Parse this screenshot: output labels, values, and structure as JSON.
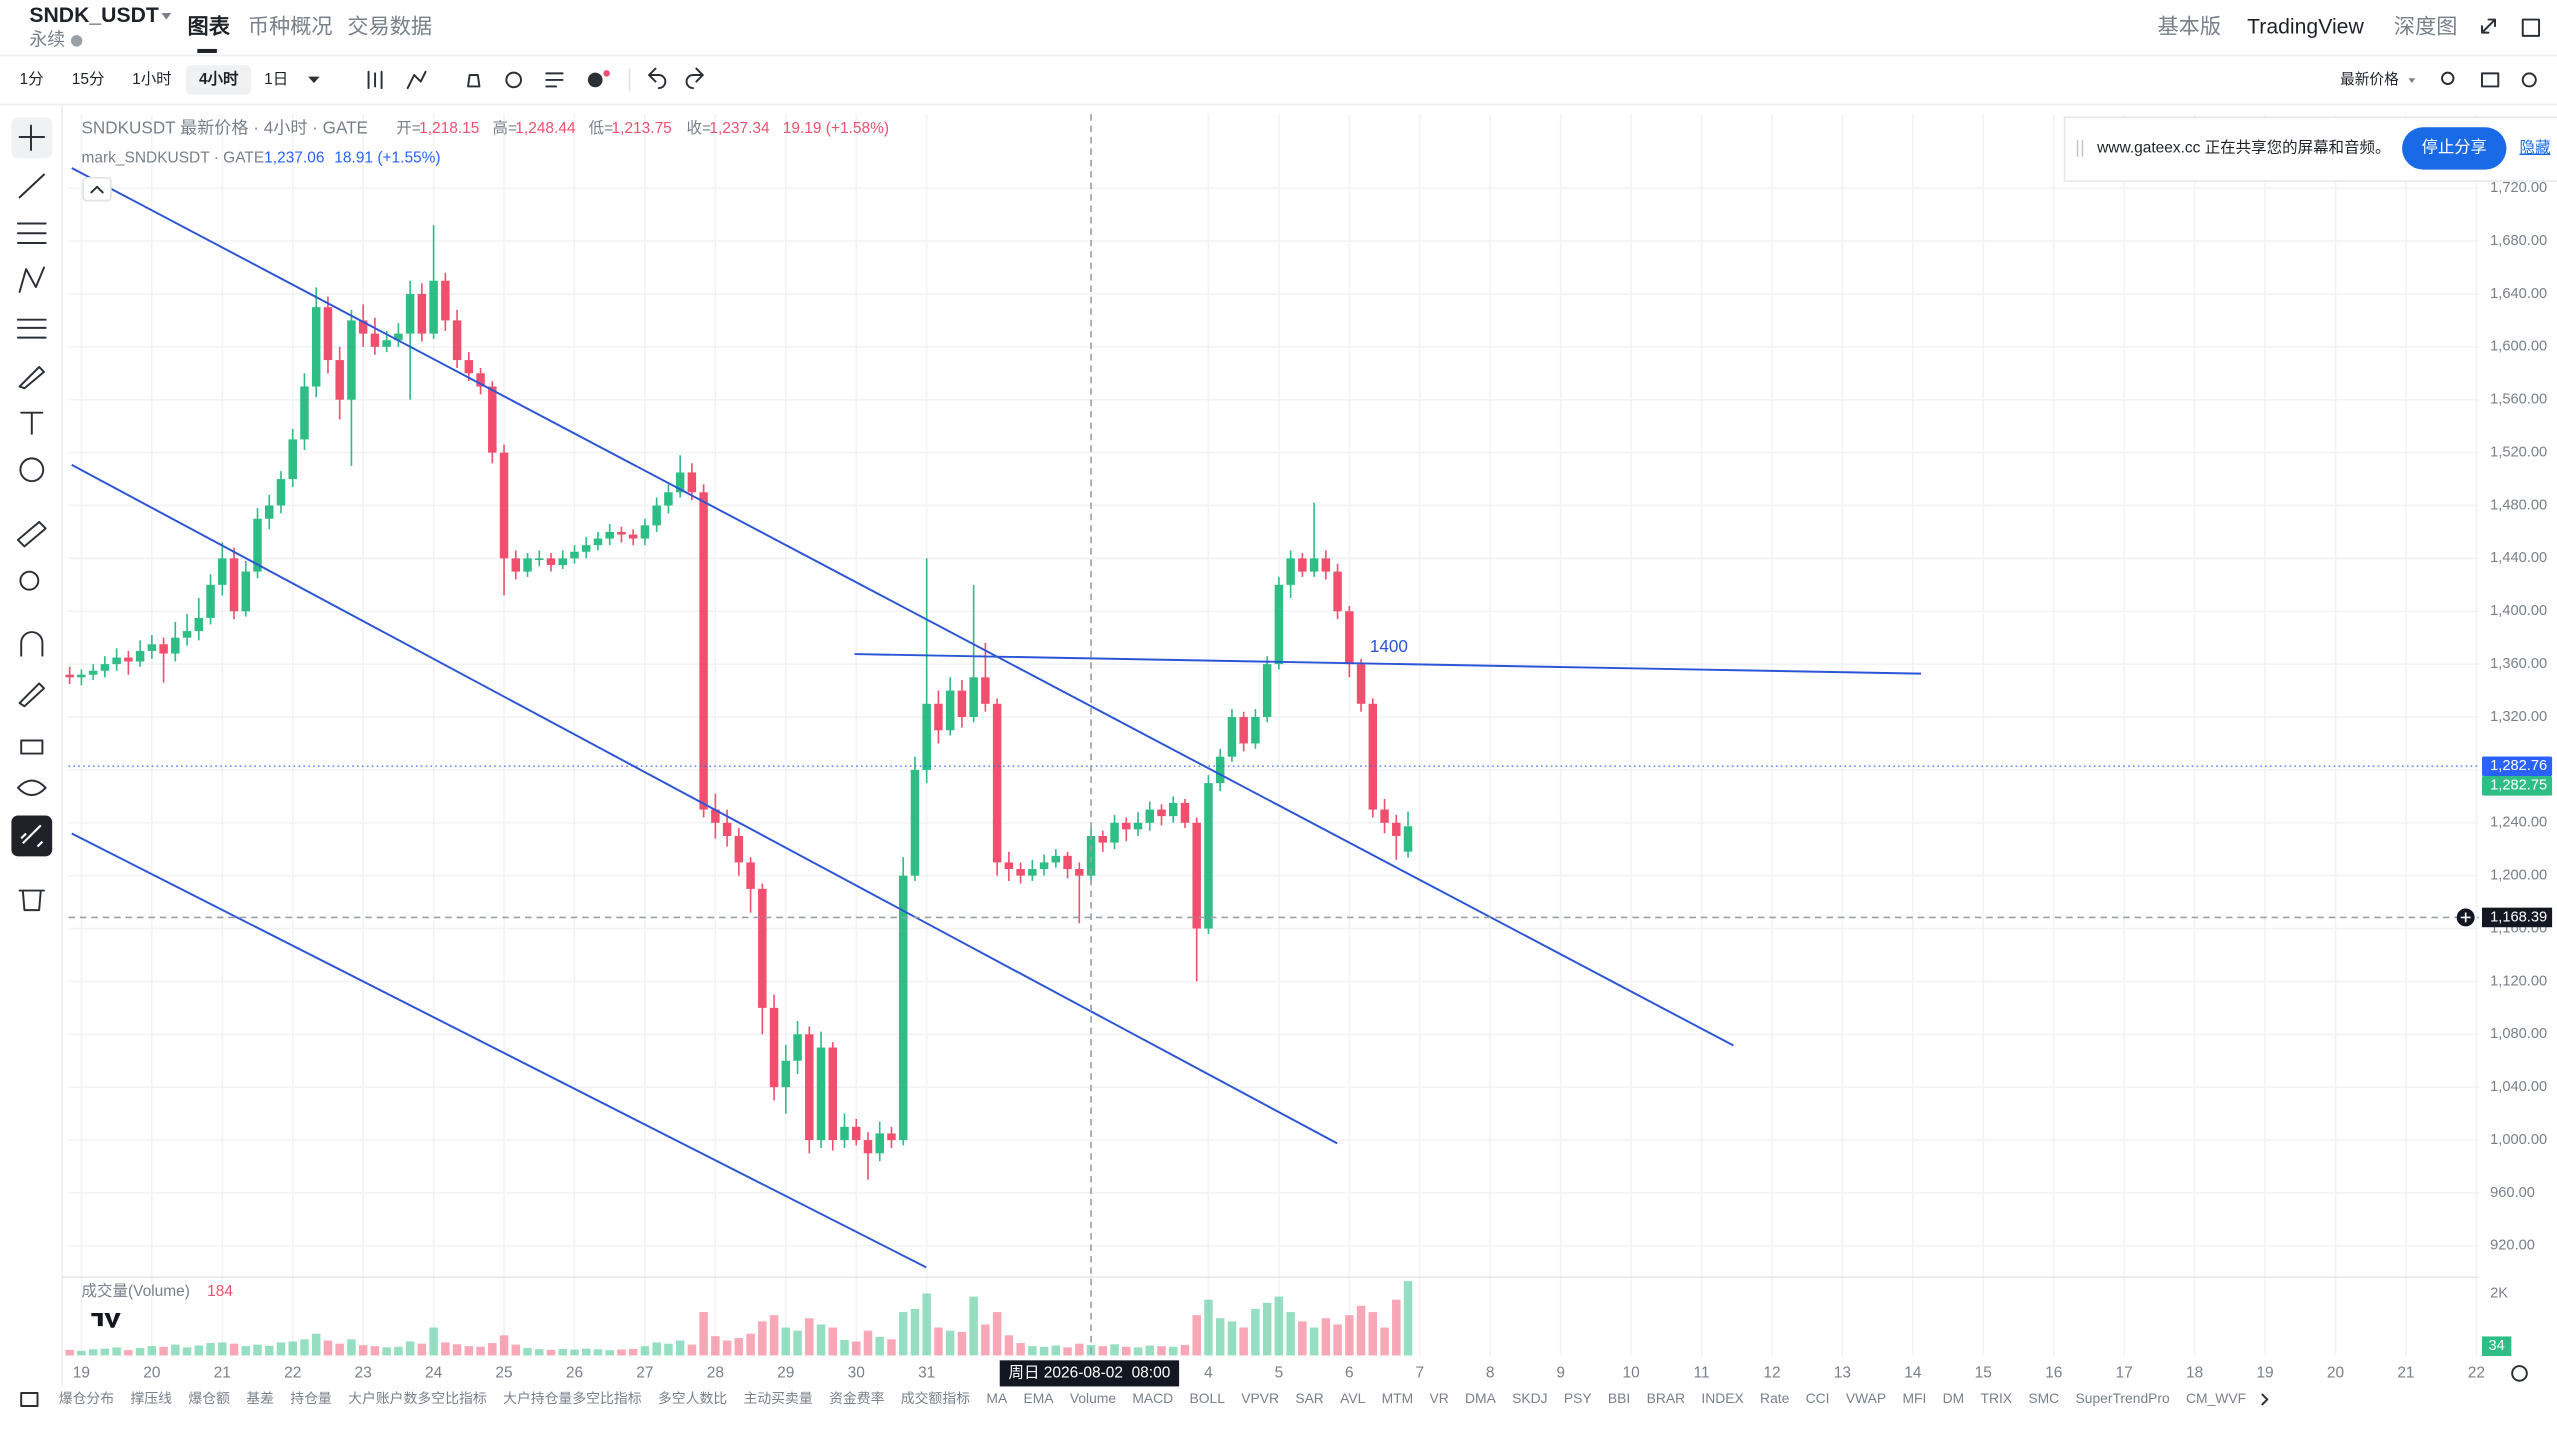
{
  "header": {
    "symbol": "SNDK_USDT",
    "contract": "永续",
    "tabs": [
      "图表",
      "币种概况",
      "交易数据"
    ],
    "right": [
      "基本版",
      "TradingView",
      "深度图"
    ]
  },
  "toolbar": {
    "intervals": [
      "1分",
      "15分",
      "1小时",
      "4小时",
      "1日"
    ],
    "price_mode": "最新价格"
  },
  "share": {
    "text": "www.gateex.cc 正在共享您的屏幕和音频。",
    "stop": "停止分享",
    "hide": "隐藏"
  },
  "chart_data": {
    "type": "candlestick",
    "title": "SNDKUSDT 最新价格 · 4小时 · GATE",
    "ohlc": [
      {
        "key": "开=",
        "value": "1,218.15"
      },
      {
        "key": "高=",
        "value": "1,248.44"
      },
      {
        "key": "低=",
        "value": "1,213.75"
      },
      {
        "key": "收=",
        "value": "1,237.34"
      }
    ],
    "change": "19.19 (+1.58%)",
    "mark": {
      "name": "mark_SNDKUSDT · GATE",
      "price": "1,237.06",
      "change": "18.91 (+1.55%)"
    },
    "colors": {
      "up": "#2ebd85",
      "down": "#f0506e"
    },
    "ylim": [
      900,
      1776
    ],
    "yticks": [
      {
        "value": 920,
        "label": "920.00"
      },
      {
        "value": 960,
        "label": "960.00"
      },
      {
        "value": 1000,
        "label": "1,000.00"
      },
      {
        "value": 1040,
        "label": "1,040.00"
      },
      {
        "value": 1080,
        "label": "1,080.00"
      },
      {
        "value": 1120,
        "label": "1,120.00"
      },
      {
        "value": 1160,
        "label": "1,160.00"
      },
      {
        "value": 1200,
        "label": "1,200.00"
      },
      {
        "value": 1240,
        "label": "1,240.00"
      },
      {
        "value": 1280,
        "label": "1,280.00"
      },
      {
        "value": 1320,
        "label": "1,320.00"
      },
      {
        "value": 1360,
        "label": "1,360.00"
      },
      {
        "value": 1400,
        "label": "1,400.00"
      },
      {
        "value": 1440,
        "label": "1,440.00"
      },
      {
        "value": 1480,
        "label": "1,480.00"
      },
      {
        "value": 1520,
        "label": "1,520.00"
      },
      {
        "value": 1560,
        "label": "1,560.00"
      },
      {
        "value": 1600,
        "label": "1,600.00"
      },
      {
        "value": 1640,
        "label": "1,640.00"
      },
      {
        "value": 1680,
        "label": "1,680.00"
      },
      {
        "value": 1720,
        "label": "1,720.00"
      }
    ],
    "xlim": [
      -0.1,
      205.2
    ],
    "xticks": [
      {
        "value": 1,
        "label": "19"
      },
      {
        "value": 7,
        "label": "20"
      },
      {
        "value": 13,
        "label": "21"
      },
      {
        "value": 19,
        "label": "22"
      },
      {
        "value": 25,
        "label": "23"
      },
      {
        "value": 31,
        "label": "24"
      },
      {
        "value": 37,
        "label": "25"
      },
      {
        "value": 43,
        "label": "26"
      },
      {
        "value": 49,
        "label": "27"
      },
      {
        "value": 55,
        "label": "28"
      },
      {
        "value": 61,
        "label": "29"
      },
      {
        "value": 67,
        "label": "30"
      },
      {
        "value": 73,
        "label": "31"
      },
      {
        "value": 97,
        "label": "4"
      },
      {
        "value": 103,
        "label": "5"
      },
      {
        "value": 109,
        "label": "6"
      },
      {
        "value": 115,
        "label": "7"
      },
      {
        "value": 121,
        "label": "8"
      },
      {
        "value": 127,
        "label": "9"
      },
      {
        "value": 133,
        "label": "10"
      },
      {
        "value": 139,
        "label": "11"
      },
      {
        "value": 145,
        "label": "12"
      },
      {
        "value": 151,
        "label": "13"
      },
      {
        "value": 157,
        "label": "14"
      },
      {
        "value": 163,
        "label": "15"
      },
      {
        "value": 169,
        "label": "16"
      },
      {
        "value": 175,
        "label": "17"
      },
      {
        "value": 181,
        "label": "18"
      },
      {
        "value": 187,
        "label": "19"
      },
      {
        "value": 193,
        "label": "20"
      },
      {
        "value": 199,
        "label": "21"
      },
      {
        "value": 205,
        "label": "22"
      }
    ],
    "candles": [
      [
        1352,
        1358,
        1345,
        1350
      ],
      [
        1350,
        1356,
        1344,
        1352
      ],
      [
        1352,
        1360,
        1348,
        1355
      ],
      [
        1355,
        1366,
        1350,
        1360
      ],
      [
        1360,
        1372,
        1355,
        1365
      ],
      [
        1365,
        1370,
        1352,
        1362
      ],
      [
        1362,
        1378,
        1358,
        1370
      ],
      [
        1370,
        1382,
        1364,
        1375
      ],
      [
        1375,
        1380,
        1346,
        1368
      ],
      [
        1368,
        1392,
        1362,
        1380
      ],
      [
        1380,
        1398,
        1374,
        1385
      ],
      [
        1385,
        1410,
        1378,
        1395
      ],
      [
        1395,
        1428,
        1390,
        1420
      ],
      [
        1420,
        1452,
        1412,
        1440
      ],
      [
        1440,
        1448,
        1394,
        1400
      ],
      [
        1400,
        1438,
        1396,
        1430
      ],
      [
        1430,
        1478,
        1425,
        1470
      ],
      [
        1470,
        1488,
        1462,
        1480
      ],
      [
        1480,
        1506,
        1474,
        1500
      ],
      [
        1500,
        1538,
        1494,
        1530
      ],
      [
        1530,
        1580,
        1522,
        1570
      ],
      [
        1570,
        1645,
        1562,
        1630
      ],
      [
        1630,
        1638,
        1580,
        1590
      ],
      [
        1590,
        1600,
        1545,
        1560
      ],
      [
        1560,
        1628,
        1510,
        1620
      ],
      [
        1620,
        1632,
        1600,
        1610
      ],
      [
        1610,
        1622,
        1594,
        1600
      ],
      [
        1600,
        1612,
        1596,
        1605
      ],
      [
        1605,
        1618,
        1600,
        1610
      ],
      [
        1610,
        1650,
        1560,
        1640
      ],
      [
        1640,
        1648,
        1604,
        1610
      ],
      [
        1610,
        1692,
        1606,
        1650
      ],
      [
        1650,
        1656,
        1612,
        1620
      ],
      [
        1620,
        1628,
        1584,
        1590
      ],
      [
        1590,
        1596,
        1574,
        1580
      ],
      [
        1580,
        1584,
        1564,
        1570
      ],
      [
        1570,
        1574,
        1512,
        1520
      ],
      [
        1520,
        1526,
        1412,
        1440
      ],
      [
        1440,
        1446,
        1424,
        1430
      ],
      [
        1430,
        1444,
        1426,
        1440
      ],
      [
        1440,
        1446,
        1434,
        1440
      ],
      [
        1440,
        1444,
        1430,
        1435
      ],
      [
        1435,
        1446,
        1432,
        1440
      ],
      [
        1440,
        1450,
        1436,
        1445
      ],
      [
        1445,
        1456,
        1440,
        1450
      ],
      [
        1450,
        1460,
        1446,
        1455
      ],
      [
        1455,
        1466,
        1450,
        1460
      ],
      [
        1460,
        1464,
        1452,
        1458
      ],
      [
        1458,
        1462,
        1450,
        1455
      ],
      [
        1455,
        1470,
        1450,
        1465
      ],
      [
        1465,
        1486,
        1460,
        1480
      ],
      [
        1480,
        1496,
        1474,
        1490
      ],
      [
        1490,
        1518,
        1486,
        1505
      ],
      [
        1505,
        1512,
        1484,
        1490
      ],
      [
        1490,
        1496,
        1244,
        1250
      ],
      [
        1250,
        1262,
        1228,
        1240
      ],
      [
        1240,
        1250,
        1222,
        1230
      ],
      [
        1230,
        1236,
        1200,
        1210
      ],
      [
        1210,
        1214,
        1172,
        1190
      ],
      [
        1190,
        1194,
        1080,
        1100
      ],
      [
        1100,
        1110,
        1030,
        1040
      ],
      [
        1040,
        1072,
        1020,
        1060
      ],
      [
        1060,
        1090,
        1050,
        1080
      ],
      [
        1080,
        1086,
        990,
        1000
      ],
      [
        1000,
        1082,
        994,
        1070
      ],
      [
        1070,
        1074,
        992,
        1000
      ],
      [
        1000,
        1020,
        994,
        1010
      ],
      [
        1010,
        1016,
        996,
        1000
      ],
      [
        1000,
        1006,
        970,
        990
      ],
      [
        990,
        1014,
        984,
        1005
      ],
      [
        1005,
        1010,
        994,
        1000
      ],
      [
        1000,
        1214,
        996,
        1200
      ],
      [
        1200,
        1290,
        1196,
        1280
      ],
      [
        1280,
        1440,
        1270,
        1330
      ],
      [
        1330,
        1340,
        1300,
        1310
      ],
      [
        1310,
        1350,
        1306,
        1340
      ],
      [
        1340,
        1348,
        1312,
        1320
      ],
      [
        1320,
        1420,
        1316,
        1350
      ],
      [
        1350,
        1376,
        1324,
        1330
      ],
      [
        1330,
        1334,
        1200,
        1210
      ],
      [
        1210,
        1218,
        1196,
        1205
      ],
      [
        1205,
        1210,
        1194,
        1200
      ],
      [
        1200,
        1212,
        1196,
        1205
      ],
      [
        1205,
        1216,
        1200,
        1210
      ],
      [
        1210,
        1220,
        1206,
        1215
      ],
      [
        1215,
        1218,
        1198,
        1205
      ],
      [
        1205,
        1210,
        1164,
        1200
      ],
      [
        1200,
        1236,
        1196,
        1230
      ],
      [
        1230,
        1234,
        1218,
        1225
      ],
      [
        1225,
        1246,
        1220,
        1240
      ],
      [
        1240,
        1244,
        1226,
        1235
      ],
      [
        1235,
        1248,
        1230,
        1240
      ],
      [
        1240,
        1256,
        1234,
        1250
      ],
      [
        1250,
        1254,
        1238,
        1245
      ],
      [
        1245,
        1260,
        1240,
        1255
      ],
      [
        1255,
        1258,
        1236,
        1240
      ],
      [
        1240,
        1244,
        1120,
        1160
      ],
      [
        1160,
        1276,
        1156,
        1270
      ],
      [
        1270,
        1296,
        1264,
        1290
      ],
      [
        1290,
        1326,
        1286,
        1320
      ],
      [
        1320,
        1324,
        1294,
        1300
      ],
      [
        1300,
        1326,
        1296,
        1320
      ],
      [
        1320,
        1366,
        1316,
        1360
      ],
      [
        1360,
        1426,
        1356,
        1420
      ],
      [
        1420,
        1446,
        1410,
        1440
      ],
      [
        1440,
        1444,
        1426,
        1430
      ],
      [
        1430,
        1482,
        1426,
        1440
      ],
      [
        1440,
        1446,
        1424,
        1430
      ],
      [
        1430,
        1436,
        1394,
        1400
      ],
      [
        1400,
        1404,
        1350,
        1360
      ],
      [
        1360,
        1364,
        1324,
        1330
      ],
      [
        1330,
        1334,
        1244,
        1250
      ],
      [
        1250,
        1258,
        1232,
        1240
      ],
      [
        1240,
        1246,
        1212,
        1230
      ],
      [
        1218.15,
        1248.44,
        1213.75,
        1237.34
      ]
    ],
    "annotation": "1400",
    "price_labels": [
      {
        "value": 1282.76,
        "label": "1,282.76",
        "color": "#2962ff"
      },
      {
        "value": 1282.75,
        "label": "1,282.75",
        "color": "#2ebd85"
      }
    ],
    "crosshair": {
      "x": 87,
      "label": "周日 2026-08-02  08:00",
      "price": {
        "value": 1168.39,
        "label": "1,168.39"
      }
    },
    "volume": {
      "title": "成交量(Volume)",
      "current": "184",
      "ylim": [
        0,
        2500
      ],
      "yticks": [
        {
          "value": 2000,
          "label": "2K"
        }
      ],
      "values": [
        180,
        150,
        200,
        220,
        260,
        170,
        240,
        300,
        280,
        350,
        260,
        320,
        400,
        420,
        380,
        300,
        350,
        310,
        420,
        450,
        520,
        700,
        480,
        380,
        520,
        330,
        300,
        260,
        280,
        450,
        380,
        900,
        420,
        360,
        300,
        280,
        400,
        650,
        350,
        240,
        200,
        180,
        210,
        190,
        220,
        200,
        170,
        190,
        210,
        300,
        420,
        380,
        480,
        350,
        1400,
        620,
        480,
        560,
        700,
        1100,
        1300,
        900,
        800,
        1200,
        1000,
        900,
        500,
        450,
        800,
        600,
        520,
        1400,
        1500,
        2000,
        900,
        800,
        760,
        1900,
        1000,
        1400,
        650,
        400,
        300,
        280,
        320,
        260,
        380,
        340,
        300,
        360,
        280,
        260,
        320,
        300,
        280,
        340,
        1300,
        1800,
        1200,
        1100,
        900,
        1500,
        1700,
        1900,
        1400,
        1100,
        900,
        1200,
        1000,
        1300,
        1600,
        1400,
        900,
        1800,
        2400
      ],
      "last": {
        "value": 34,
        "label": "34"
      }
    }
  },
  "indicators": [
    "爆仓分布",
    "撑压线",
    "爆仓额",
    "基差",
    "持仓量",
    "大户账户数多空比指标",
    "大户持仓量多空比指标",
    "多空人数比",
    "主动买卖量",
    "资金费率",
    "成交额指标",
    "MA",
    "EMA",
    "Volume",
    "MACD",
    "BOLL",
    "VPVR",
    "SAR",
    "AVL",
    "MTM",
    "VR",
    "DMA",
    "SKDJ",
    "PSY",
    "BBI",
    "BRAR",
    "INDEX",
    "Rate",
    "CCI",
    "VWAP",
    "MFI",
    "DM",
    "TRIX",
    "SMC",
    "SuperTrendPro",
    "CM_WVF"
  ]
}
